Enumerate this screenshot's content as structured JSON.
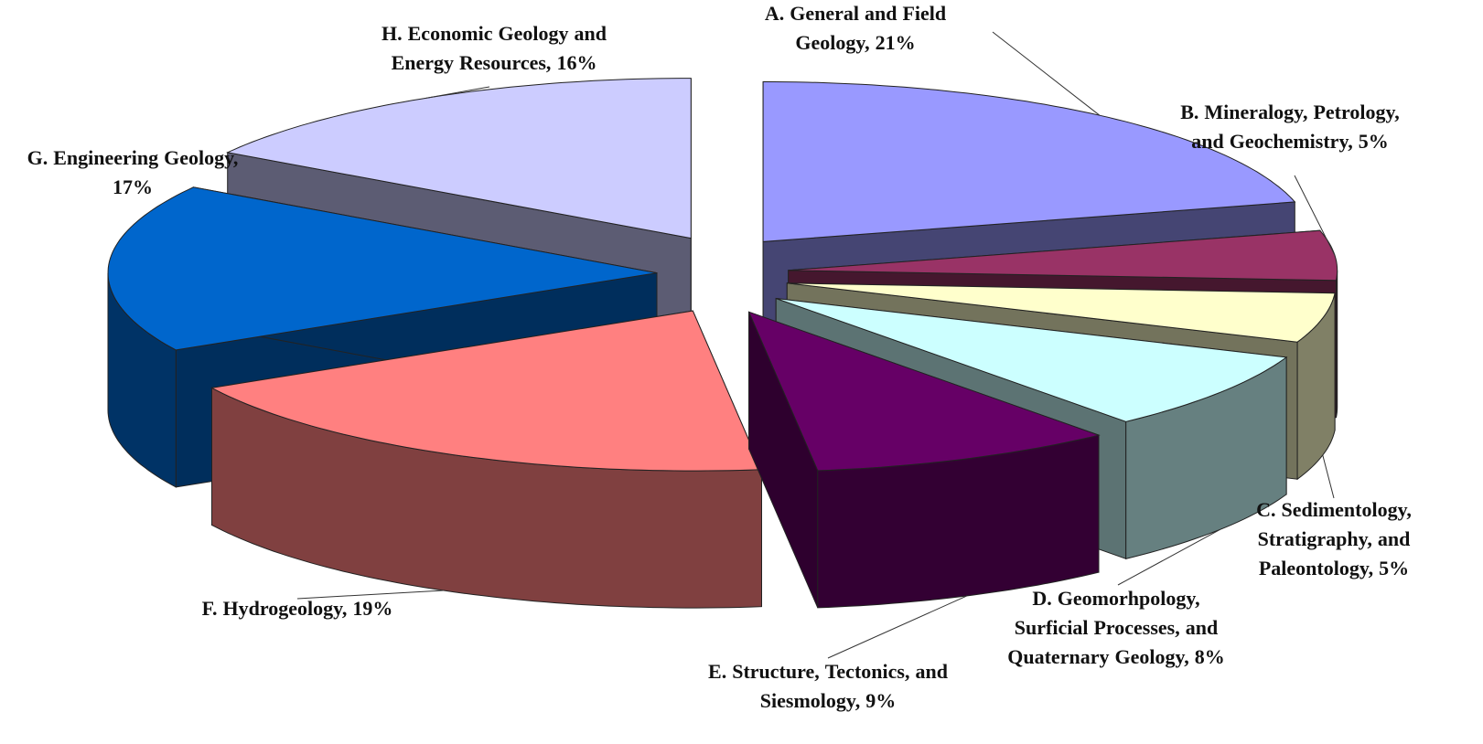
{
  "chart_data": {
    "type": "pie3d",
    "categories": [
      "A. General and Field Geology,",
      "B. Mineralogy, Petrology, and Geochemistry,",
      "C. Sedimentology, Stratigraphy, and Paleontology,",
      "D. Geomorhpology, Surficial Processes, and Quaternary Geology,",
      "E. Structure, Tectonics, and Siesmology,",
      "F. Hydrogeology,",
      "G. Engineering Geology,",
      "H. Economic Geology and Energy Resources,"
    ],
    "values": [
      21,
      5,
      5,
      8,
      9,
      19,
      17,
      16
    ],
    "value_labels": [
      "21%",
      "5%",
      "5%",
      "8%",
      "9%",
      "19%",
      "17%",
      "16%"
    ],
    "colors": [
      "#9999ff",
      "#993366",
      "#ffffcc",
      "#ccffff",
      "#660066",
      "#ff8080",
      "#0066cc",
      "#ccccff"
    ]
  }
}
